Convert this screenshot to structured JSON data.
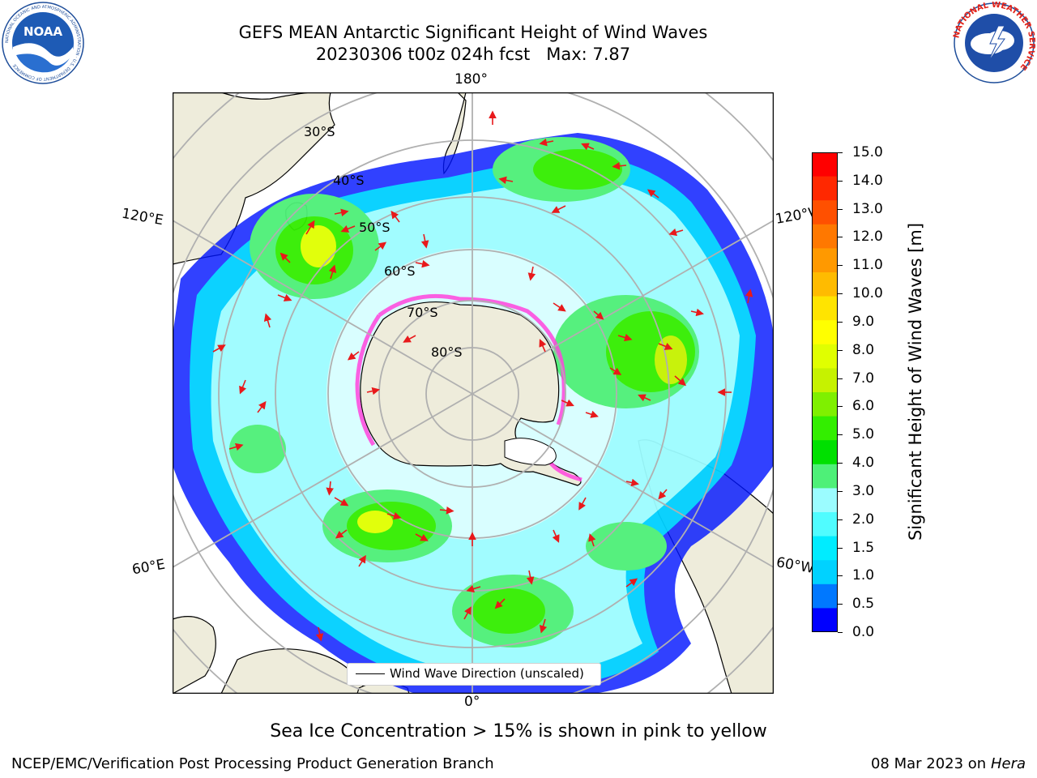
{
  "title": {
    "line1": "GEFS MEAN Antarctic Significant Height of Wind Waves",
    "line2": "20230306 t00z 024h fcst   Max: 7.87"
  },
  "logos": {
    "left": {
      "text": "NOAA",
      "ring_text": "NATIONAL OCEANIC AND ATMOSPHERIC ADMINISTRATION · U.S. DEPARTMENT OF COMMERCE",
      "icon": "noaa-logo"
    },
    "right": {
      "ring_text": "NATIONAL WEATHER SERVICE",
      "icon": "nws-logo"
    }
  },
  "map": {
    "projection": "south-polar-stereographic",
    "longitude_labels": {
      "top": "180°",
      "bottom": "0°",
      "left_upper": "120°E",
      "left_lower": "60°E",
      "right_upper": "120°W",
      "right_lower": "60°W"
    },
    "latitude_labels": [
      "30°S",
      "40°S",
      "50°S",
      "60°S",
      "70°S",
      "80°S"
    ],
    "legend": {
      "label": "Wind Wave Direction (unscaled)"
    },
    "colors": {
      "land": "#eeecdb",
      "ocean": "#ffffff",
      "arrow": "#e8191b",
      "grid": "#b0b0b0",
      "sea_ice": "#ff44dd"
    }
  },
  "colorbar": {
    "label": "Significant Height of Wind Waves [m]",
    "ticks": [
      "15.0",
      "14.0",
      "13.0",
      "12.0",
      "11.0",
      "10.0",
      "9.0",
      "8.0",
      "7.0",
      "6.0",
      "5.0",
      "4.0",
      "3.0",
      "2.0",
      "1.5",
      "1.0",
      "0.5",
      "0.0"
    ],
    "colors": [
      "#ff0000",
      "#ff2800",
      "#ff5000",
      "#ff7800",
      "#ff9900",
      "#ffbb00",
      "#ffe400",
      "#ffff00",
      "#e0ff00",
      "#c6f200",
      "#7ff000",
      "#33ee00",
      "#00e000",
      "#4ef078",
      "#9bfcff",
      "#50fcff",
      "#00ecff",
      "#00d2ff",
      "#0078ff",
      "#0000ff"
    ]
  },
  "footer": {
    "note": "Sea Ice Concentration > 15% is shown in pink to yellow",
    "credit": "NCEP/EMC/Verification Post Processing Product Generation Branch",
    "date": "08 Mar 2023 on",
    "host": "Hera"
  }
}
